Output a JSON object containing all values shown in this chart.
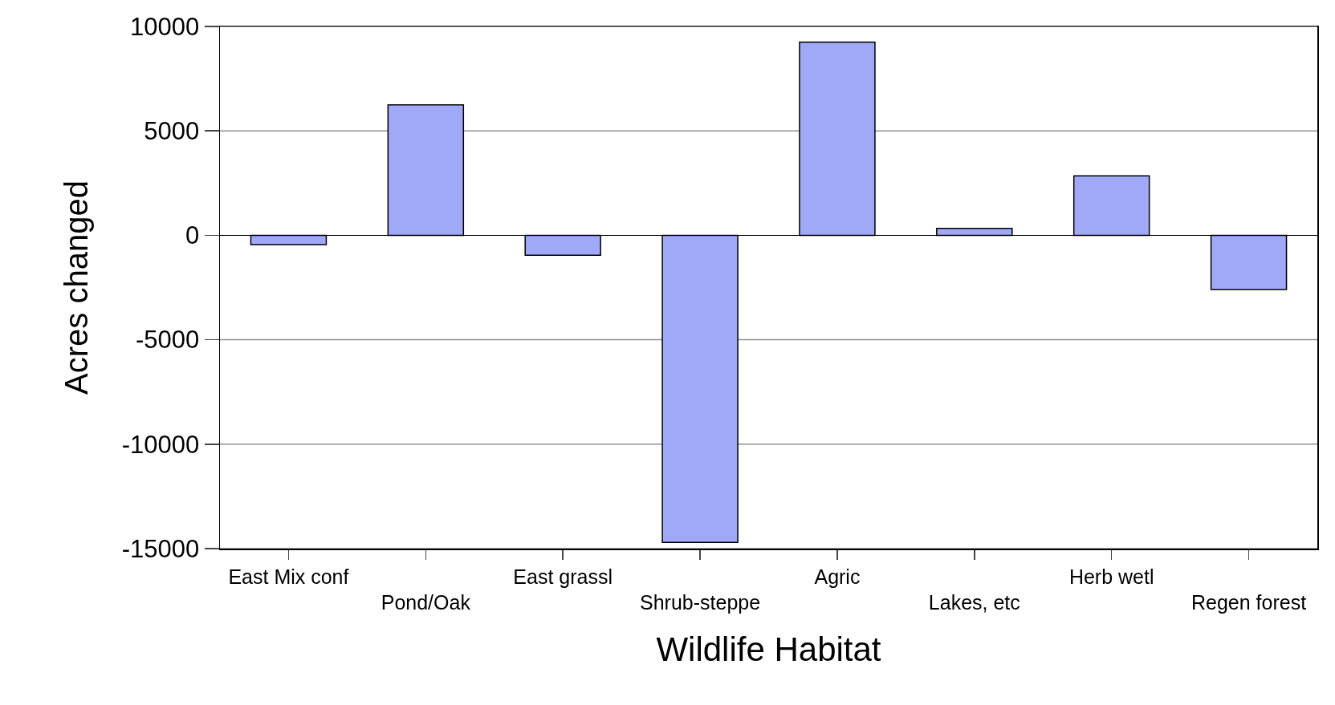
{
  "chart_data": {
    "type": "bar",
    "xlabel": "Wildlife Habitat",
    "ylabel": "Acres changed",
    "categories": [
      "East Mix conf",
      "Pond/Oak",
      "East grassl",
      "Shrub-steppe",
      "Agric",
      "Lakes, etc",
      "Herb wetl",
      "Regen forest"
    ],
    "values": [
      -450,
      6250,
      -950,
      -14700,
      9250,
      330,
      2850,
      -2600
    ],
    "color": "#a0a8f8",
    "ylim": [
      -15000,
      10000
    ],
    "yticks": [
      -15000,
      -10000,
      -5000,
      0,
      5000,
      10000
    ],
    "grid": "y",
    "legend": false
  }
}
